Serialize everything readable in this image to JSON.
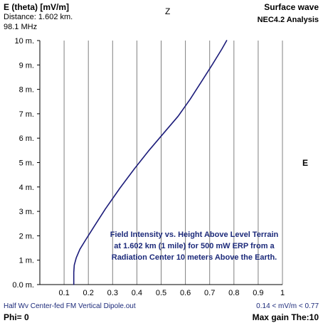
{
  "header": {
    "title": "E (theta) [mV/m]",
    "distance": "Distance: 1.602 km.",
    "frequency": "98.1 MHz",
    "z_label": "Z",
    "mode": "Surface wave",
    "analysis": "NEC4.2 Analysis"
  },
  "right_label": "E",
  "annotation": [
    "Field Intensity vs. Height Above Level Terrain",
    "at 1.602 km (1 mile) for 500 mW ERP from a",
    "Radiation Center 10 meters Above the Earth."
  ],
  "footer": {
    "filename": "Half Wv Center-fed FM Vertical Dipole.out",
    "range": "0.14 < mV/m < 0.77",
    "phi": "Phi= 0",
    "max_gain": "Max gain The:10"
  },
  "colors": {
    "curve": "#1c1c7a",
    "grid": "#808080",
    "axis": "#000000",
    "annotation_text": "#1c2a7a"
  },
  "chart_data": {
    "type": "line",
    "xlabel": "",
    "ylabel": "",
    "xlim": [
      0,
      1
    ],
    "ylim": [
      0,
      10
    ],
    "x_ticks": [
      "0.1",
      "0.2",
      "0.3",
      "0.4",
      "0.5",
      "0.6",
      "0.7",
      "0.8",
      "0.9",
      "1"
    ],
    "y_ticks": [
      "0.0 m.",
      "1 m.",
      "2 m.",
      "3 m.",
      "4 m.",
      "5 m.",
      "6 m.",
      "7 m.",
      "8 m.",
      "9 m.",
      "10 m."
    ],
    "grid": true,
    "series": [
      {
        "x": [
          0.14,
          0.14,
          0.142,
          0.15,
          0.165,
          0.19,
          0.225,
          0.27,
          0.33,
          0.39,
          0.45,
          0.51,
          0.57,
          0.62,
          0.665,
          0.71,
          0.75,
          0.77
        ],
        "y": [
          0.0,
          0.5,
          0.8,
          1.1,
          1.45,
          1.85,
          2.4,
          3.1,
          3.95,
          4.75,
          5.5,
          6.2,
          6.9,
          7.6,
          8.3,
          9.0,
          9.65,
          10.0
        ]
      }
    ]
  }
}
